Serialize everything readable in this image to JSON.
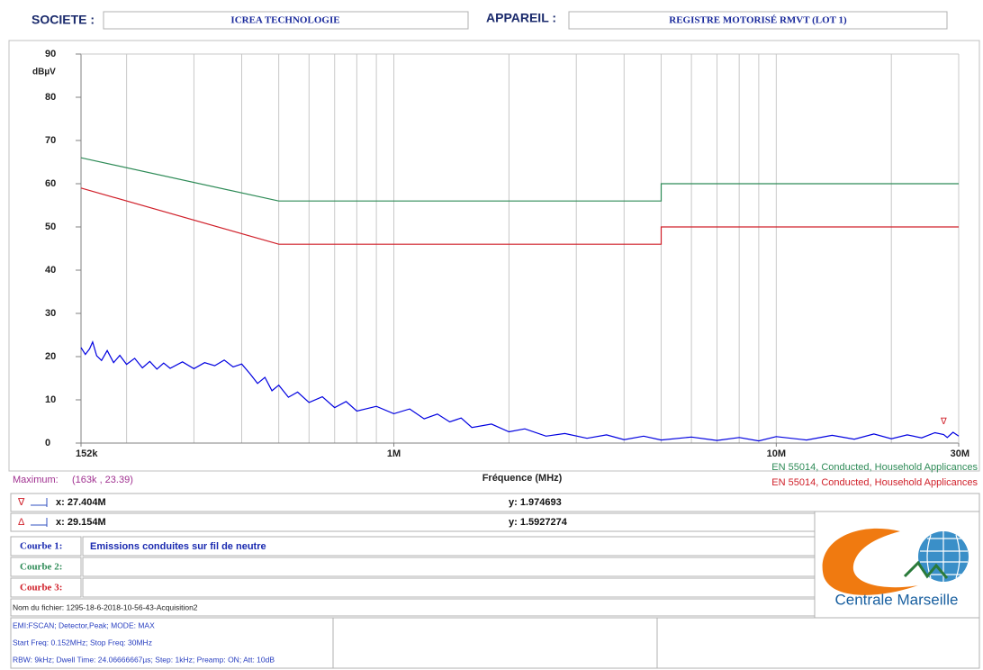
{
  "header": {
    "company_label": "SOCIETE :",
    "company": "ICREA TECHNOLOGIE",
    "device_label": "APPAREIL :",
    "device": "REGISTRE MOTORISÉ RMVT (LOT 1)"
  },
  "chart_data": {
    "type": "line",
    "y_label": "dBµV",
    "x_label": "Fréquence (MHz)",
    "xscale": "log",
    "xlim": [
      0.152,
      30
    ],
    "xticks": [
      {
        "value": 0.152,
        "label": "152k"
      },
      {
        "value": 1,
        "label": "1M"
      },
      {
        "value": 10,
        "label": "10M"
      },
      {
        "value": 30,
        "label": "30M"
      }
    ],
    "xgrid": [
      0.2,
      0.3,
      0.4,
      0.5,
      0.6,
      0.7,
      0.8,
      0.9,
      1,
      2,
      3,
      4,
      5,
      6,
      7,
      8,
      9,
      10,
      20,
      30
    ],
    "ylim": [
      0,
      90
    ],
    "yticks": [
      0,
      10,
      20,
      30,
      40,
      50,
      60,
      70,
      80,
      90
    ],
    "legend_position": "bottom-right",
    "maximum_label": "Maximum:",
    "maximum": "(163k , 23.39)",
    "series": [
      {
        "name": "EN 55014, Conducted, Household Applicances",
        "color": "#2e8b57",
        "x": [
          0.152,
          0.5,
          5,
          5,
          30
        ],
        "values": [
          66,
          56,
          56,
          60,
          60
        ]
      },
      {
        "name": "EN 55014, Conducted, Household Applicances",
        "color": "#d0202a",
        "x": [
          0.152,
          0.5,
          5,
          5,
          30
        ],
        "values": [
          59,
          46,
          46,
          50,
          50
        ]
      },
      {
        "color": "#0000e0",
        "x": [
          0.152,
          0.156,
          0.16,
          0.163,
          0.167,
          0.172,
          0.178,
          0.185,
          0.192,
          0.2,
          0.21,
          0.22,
          0.23,
          0.24,
          0.25,
          0.26,
          0.28,
          0.3,
          0.32,
          0.34,
          0.36,
          0.38,
          0.4,
          0.42,
          0.44,
          0.46,
          0.48,
          0.5,
          0.53,
          0.56,
          0.6,
          0.65,
          0.7,
          0.75,
          0.8,
          0.9,
          1.0,
          1.1,
          1.2,
          1.3,
          1.4,
          1.5,
          1.6,
          1.8,
          2.0,
          2.2,
          2.5,
          2.8,
          3.2,
          3.6,
          4,
          4.5,
          5,
          6,
          7,
          8,
          9,
          10,
          12,
          14,
          16,
          18,
          20,
          22,
          24,
          26,
          27.404,
          28,
          29,
          30
        ],
        "values": [
          22.1,
          20.5,
          21.8,
          23.39,
          20.2,
          19.1,
          21.4,
          18.6,
          20.3,
          18.2,
          19.6,
          17.4,
          18.9,
          17.1,
          18.5,
          17.3,
          18.8,
          17.2,
          18.6,
          17.9,
          19.2,
          17.6,
          18.3,
          16.1,
          13.8,
          15.2,
          12.1,
          13.4,
          10.6,
          11.8,
          9.4,
          10.7,
          8.2,
          9.6,
          7.4,
          8.5,
          6.8,
          7.9,
          5.6,
          6.7,
          4.9,
          5.8,
          3.6,
          4.4,
          2.6,
          3.3,
          1.6,
          2.2,
          1.1,
          1.9,
          0.8,
          1.6,
          0.7,
          1.4,
          0.6,
          1.3,
          0.5,
          1.5,
          0.7,
          1.8,
          0.9,
          2.1,
          1.0,
          1.9,
          1.2,
          2.4,
          1.97,
          1.3,
          2.5,
          1.6
        ]
      }
    ],
    "markers": [
      {
        "symbol": "∇",
        "x_label": "x: 27.404M",
        "y_label": "y: 1.974693",
        "x": 27.404,
        "y": 1.974693
      },
      {
        "symbol": "Δ",
        "x_label": "x: 29.154M",
        "y_label": "y: 1.5927274",
        "x": 29.154,
        "y": 1.5927274
      }
    ]
  },
  "curves": [
    {
      "label": "Courbe 1:",
      "text": "Emissions conduites sur fil de neutre"
    },
    {
      "label": "Courbe 2:"
    },
    {
      "label": "Courbe 3:"
    }
  ],
  "file_name": "Nom du fichier: 1295-18-6-2018-10-56-43-Acquisition2",
  "settings": [
    "EMI:FSCAN; Detector,Peak; MODE: MAX",
    "Start Freq: 0.152MHz; Stop Freq: 30MHz",
    "RBW: 9kHz; Dwell Time: 24.06666667µs; Step: 1kHz; Preamp: ON; Att: 10dB"
  ],
  "logo": "Centrale Marseille"
}
